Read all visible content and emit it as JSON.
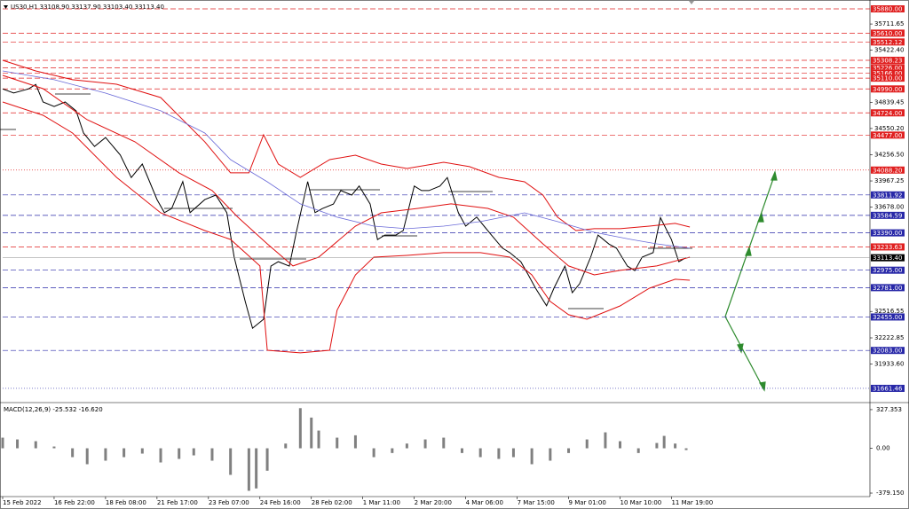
{
  "chart_data": [
    {
      "type": "line",
      "title": "US30,H1  33108.90 33137.90 33103.40 33113.40",
      "xlim": [
        0,
        236
      ],
      "ylim": [
        31523,
        35949
      ],
      "xticks": [
        {
          "value": 0,
          "label": "15 Feb 2022"
        },
        {
          "value": 14,
          "label": "16 Feb 22:00"
        },
        {
          "value": 28,
          "label": "18 Feb 08:00"
        },
        {
          "value": 42,
          "label": "21 Feb 17:00"
        },
        {
          "value": 56,
          "label": "23 Feb 07:00"
        },
        {
          "value": 70,
          "label": "24 Feb 16:00"
        },
        {
          "value": 84,
          "label": "28 Feb 02:00"
        },
        {
          "value": 98,
          "label": "1 Mar 11:00"
        },
        {
          "value": 112,
          "label": "2 Mar 20:00"
        },
        {
          "value": 126,
          "label": "4 Mar 06:00"
        },
        {
          "value": 140,
          "label": "7 Mar 15:00"
        },
        {
          "value": 154,
          "label": "9 Mar 01:00"
        },
        {
          "value": 168,
          "label": "10 Mar 10:00"
        },
        {
          "value": 182,
          "label": "11 Mar 19:00"
        }
      ],
      "yticks": [
        {
          "value": 35711.65,
          "label": "35711.65"
        },
        {
          "value": 35422.4,
          "label": "35422.40"
        },
        {
          "value": 34839.45,
          "label": "34839.45"
        },
        {
          "value": 34550.2,
          "label": "34550.20"
        },
        {
          "value": 34256.5,
          "label": "34256.50"
        },
        {
          "value": 33967.25,
          "label": "33967.25"
        },
        {
          "value": 33678,
          "label": "33678.00"
        },
        {
          "value": 32516.55,
          "label": "32516.55"
        },
        {
          "value": 32222.85,
          "label": "32222.85"
        },
        {
          "value": 31933.6,
          "label": "31933.60"
        }
      ],
      "levels": [
        {
          "value": 35880,
          "label": "35880.00",
          "color": "#e02020",
          "style": "dash"
        },
        {
          "value": 35610,
          "label": "35610.00",
          "color": "#e02020",
          "style": "dash"
        },
        {
          "value": 35512.12,
          "label": "35512.12",
          "color": "#e02020",
          "style": "dash"
        },
        {
          "value": 35308.23,
          "label": "35308.23",
          "color": "#e02020",
          "style": "dash"
        },
        {
          "value": 35226,
          "label": "35226.00",
          "color": "#e02020",
          "style": "dash"
        },
        {
          "value": 35166,
          "label": "35166.00",
          "color": "#e02020",
          "style": "dash"
        },
        {
          "value": 35110,
          "label": "35110.00",
          "color": "#e02020",
          "style": "dash"
        },
        {
          "value": 34990,
          "label": "34990.00",
          "color": "#e02020",
          "style": "dash"
        },
        {
          "value": 34724,
          "label": "34724.00",
          "color": "#e02020",
          "style": "dash"
        },
        {
          "value": 34477,
          "label": "34477.00",
          "color": "#e02020",
          "style": "dash"
        },
        {
          "value": 34088.2,
          "label": "34088.20",
          "color": "#e02020",
          "style": "dot"
        },
        {
          "value": 33811.92,
          "label": "33811.92",
          "color": "#2828a8",
          "style": "dash"
        },
        {
          "value": 33584.59,
          "label": "33584.59",
          "color": "#2828a8",
          "style": "dash"
        },
        {
          "value": 33390,
          "label": "33390.00",
          "color": "#2828a8",
          "style": "dash"
        },
        {
          "value": 33233.63,
          "label": "33233.63",
          "color": "#e02020",
          "style": "dash"
        },
        {
          "value": 32975,
          "label": "32975.00",
          "color": "#2828a8",
          "style": "dash"
        },
        {
          "value": 32781,
          "label": "32781.00",
          "color": "#2828a8",
          "style": "dash"
        },
        {
          "value": 32455,
          "label": "32455.00",
          "color": "#2828a8",
          "style": "dash"
        },
        {
          "value": 32083,
          "label": "32083.00",
          "color": "#2828a8",
          "style": "dash"
        },
        {
          "value": 31661.46,
          "label": "31661.46",
          "color": "#2828a8",
          "style": "dot"
        }
      ],
      "last_price": {
        "value": 33113.4,
        "label": "33113.40"
      },
      "series": [
        {
          "color": "#000000",
          "width": 1,
          "x": [
            0,
            3,
            7,
            9,
            11,
            14,
            17,
            20,
            22,
            25,
            28,
            32,
            35,
            38,
            42,
            44,
            46,
            49,
            51,
            55,
            58,
            61,
            63,
            66,
            68,
            71,
            73,
            75,
            78,
            80,
            83,
            85,
            87,
            90,
            92,
            95,
            97,
            100,
            102,
            104,
            107,
            109,
            112,
            114,
            116,
            119,
            121,
            124,
            126,
            129,
            131,
            133,
            136,
            138,
            141,
            143,
            145,
            148,
            150,
            153,
            155,
            157,
            160,
            162,
            165,
            167,
            170,
            172,
            174,
            177,
            179,
            182,
            184,
            186
          ],
          "values": [
            34990,
            34945,
            34990,
            35040,
            34845,
            34795,
            34845,
            34745,
            34500,
            34350,
            34450,
            34255,
            34005,
            34155,
            33760,
            33615,
            33660,
            33960,
            33615,
            33760,
            33810,
            33615,
            33120,
            32630,
            32330,
            32430,
            33020,
            33070,
            33020,
            33415,
            33960,
            33615,
            33660,
            33710,
            33860,
            33810,
            33910,
            33710,
            33315,
            33365,
            33365,
            33415,
            33910,
            33860,
            33860,
            33910,
            34005,
            33615,
            33465,
            33565,
            33465,
            33365,
            33220,
            33170,
            33070,
            32925,
            32775,
            32580,
            32775,
            33020,
            32725,
            32825,
            33120,
            33365,
            33265,
            33220,
            33020,
            32970,
            33120,
            33170,
            33560,
            33315,
            33070,
            33115
          ]
        },
        {
          "color": "#e01010",
          "width": 1,
          "x": [
            0,
            9,
            19,
            31,
            43,
            55,
            62,
            67,
            71,
            75,
            81,
            89,
            96,
            103,
            110,
            120,
            127,
            135,
            142,
            147,
            151,
            156,
            161,
            168,
            176,
            183,
            187
          ],
          "values": [
            35308,
            35190,
            35092,
            35042,
            34894,
            34402,
            34057,
            34057,
            34480,
            34155,
            34007,
            34204,
            34254,
            34155,
            34106,
            34175,
            34126,
            34007,
            33958,
            33810,
            33564,
            33416,
            33436,
            33436,
            33465,
            33495,
            33455
          ]
        },
        {
          "color": "#e01010",
          "width": 1,
          "x": [
            0,
            11,
            23,
            36,
            48,
            57,
            64,
            72,
            79,
            86,
            96,
            103,
            113,
            122,
            132,
            139,
            147,
            154,
            161,
            168,
            178,
            187
          ],
          "values": [
            35141,
            34993,
            34648,
            34402,
            34057,
            33860,
            33564,
            33268,
            33022,
            33120,
            33465,
            33613,
            33662,
            33712,
            33662,
            33564,
            33268,
            33022,
            32923,
            32973,
            33022,
            33120
          ]
        },
        {
          "color": "#e01010",
          "width": 1,
          "x": [
            0,
            11,
            19,
            31,
            43,
            55,
            62,
            70,
            72,
            81,
            89,
            91,
            96,
            101,
            110,
            120,
            130,
            138,
            144,
            149,
            154,
            159,
            168,
            176,
            183,
            187
          ],
          "values": [
            34845,
            34697,
            34500,
            34007,
            33613,
            33416,
            33317,
            33022,
            32085,
            32056,
            32085,
            32529,
            32923,
            33120,
            33140,
            33170,
            33170,
            33120,
            32923,
            32628,
            32480,
            32430,
            32578,
            32775,
            32874,
            32864
          ]
        },
        {
          "color": "#6a6ad8",
          "width": 0.8,
          "x": [
            0,
            14,
            28,
            43,
            55,
            62,
            72,
            81,
            91,
            101,
            110,
            120,
            130,
            142,
            151,
            161,
            171,
            178,
            187
          ],
          "values": [
            35190,
            35092,
            34944,
            34747,
            34500,
            34204,
            33958,
            33712,
            33564,
            33465,
            33436,
            33465,
            33515,
            33613,
            33515,
            33396,
            33317,
            33268,
            33219
          ]
        }
      ]
    },
    {
      "type": "bar",
      "title": "MACD(12,26,9) -25.532 -16.620",
      "color": "#808080",
      "ylim": [
        -409,
        372
      ],
      "yticks": [
        {
          "value": 327.353,
          "label": "327.353"
        },
        {
          "value": 0,
          "label": "0.00"
        },
        {
          "value": -379.15,
          "label": "-379.150"
        }
      ],
      "x": [
        0,
        4,
        9,
        14,
        19,
        23,
        28,
        33,
        38,
        43,
        48,
        52,
        57,
        62,
        67,
        69,
        72,
        77,
        81,
        84,
        86,
        91,
        96,
        101,
        106,
        110,
        115,
        120,
        125,
        130,
        135,
        139,
        144,
        149,
        154,
        159,
        164,
        168,
        173,
        178,
        180,
        183,
        186
      ],
      "values": [
        90,
        75,
        60,
        15,
        -75,
        -135,
        -105,
        -75,
        -45,
        -120,
        -90,
        -60,
        -105,
        -225,
        -360,
        -340,
        -190,
        40,
        340,
        260,
        150,
        90,
        110,
        -75,
        -40,
        40,
        75,
        90,
        -40,
        -75,
        -90,
        -75,
        -135,
        -105,
        -40,
        75,
        135,
        60,
        -40,
        45,
        105,
        40,
        -15
      ]
    }
  ]
}
